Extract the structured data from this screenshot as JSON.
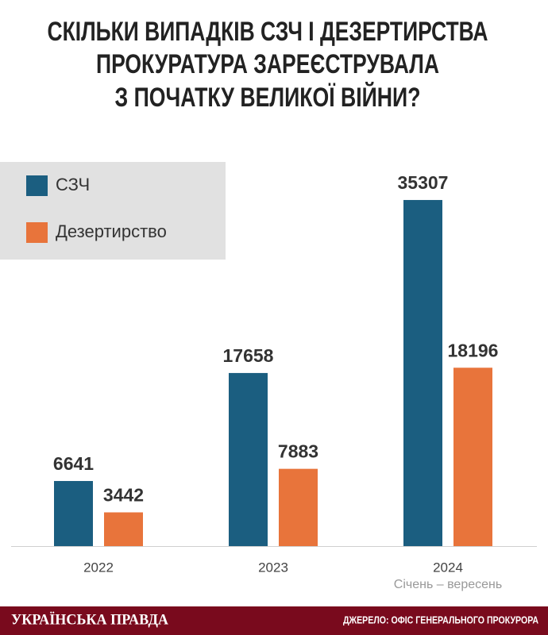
{
  "chart_data": {
    "type": "bar",
    "title": [
      "СКІЛЬКИ ВИПАДКІВ СЗЧ І ДЕЗЕРТИРСТВА",
      "ПРОКУРАТУРА ЗАРЕЄСТРУВАЛА",
      "З ПОЧАТКУ ВЕЛИКОЇ ВІЙНИ?"
    ],
    "categories": [
      "2022",
      "2023",
      "2024"
    ],
    "annotation": "Січень – вересень",
    "series": [
      {
        "name": "СЗЧ",
        "color": "#1b5e80",
        "values": [
          6641,
          17658,
          35307
        ]
      },
      {
        "name": "Дезертирство",
        "color": "#e8743b",
        "values": [
          3442,
          7883,
          18196
        ]
      }
    ],
    "ylim": [
      0,
      40000
    ],
    "grid": false,
    "legend": "top-left"
  },
  "footer": {
    "brand": "УКРАЇНСЬКА ПРАВДА",
    "source": "ДЖЕРЕЛО: ОФІС ГЕНЕРАЛЬНОГО ПРОКУРОРА"
  }
}
